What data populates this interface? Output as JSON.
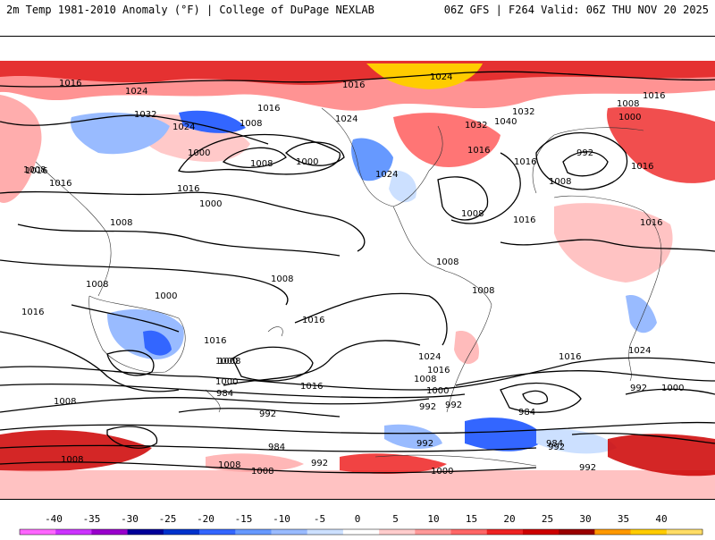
{
  "header": {
    "left": "2m Temp 1981-2010 Anomaly (°F) | College of DuPage NEXLAB",
    "right": "06Z GFS | F264 Valid: 06Z THU NOV 20 2025"
  },
  "colorbar": {
    "ticks": [
      "-40",
      "-35",
      "-30",
      "-25",
      "-20",
      "-15",
      "-10",
      "-5",
      "0",
      "5",
      "10",
      "15",
      "20",
      "25",
      "30",
      "35",
      "40"
    ],
    "colors": [
      "#ff66ff",
      "#cc33ff",
      "#9900cc",
      "#000099",
      "#0033cc",
      "#3366ff",
      "#6699ff",
      "#99bbff",
      "#cce0ff",
      "#ffffff",
      "#ffcccc",
      "#ff9999",
      "#ff6666",
      "#ee2222",
      "#cc0000",
      "#990000",
      "#ff9900",
      "#ffcc00",
      "#ffdd66"
    ]
  },
  "map": {
    "isobar_labels": [
      {
        "text": "1016",
        "id": "l1"
      },
      {
        "text": "1024",
        "id": "l2"
      },
      {
        "text": "1032",
        "id": "l3"
      },
      {
        "text": "1024",
        "id": "l4"
      },
      {
        "text": "1008",
        "id": "l5"
      },
      {
        "text": "1016",
        "id": "l6"
      },
      {
        "text": "1000",
        "id": "l7"
      },
      {
        "text": "1008",
        "id": "l8"
      },
      {
        "text": "1000",
        "id": "l9"
      },
      {
        "text": "1024",
        "id": "l10"
      },
      {
        "text": "1016",
        "id": "l11"
      },
      {
        "text": "1024",
        "id": "l12"
      },
      {
        "text": "1032",
        "id": "l13"
      },
      {
        "text": "1040",
        "id": "l14"
      },
      {
        "text": "1032",
        "id": "l15"
      },
      {
        "text": "1016",
        "id": "l16"
      },
      {
        "text": "1008",
        "id": "l17"
      },
      {
        "text": "1000",
        "id": "l18"
      },
      {
        "text": "992",
        "id": "l19"
      },
      {
        "text": "1016",
        "id": "l20"
      },
      {
        "text": "1024",
        "id": "l21"
      },
      {
        "text": "1016",
        "id": "l22"
      },
      {
        "text": "1016",
        "id": "l23"
      },
      {
        "text": "1008",
        "id": "l24"
      },
      {
        "text": "1016",
        "id": "l25"
      },
      {
        "text": "1008",
        "id": "l26"
      },
      {
        "text": "1016",
        "id": "l27"
      },
      {
        "text": "1008",
        "id": "l28"
      },
      {
        "text": "1008",
        "id": "l29"
      },
      {
        "text": "1000",
        "id": "l30"
      },
      {
        "text": "1016",
        "id": "l31"
      },
      {
        "text": "1016",
        "id": "l32"
      },
      {
        "text": "1008",
        "id": "l33"
      },
      {
        "text": "1008",
        "id": "l34"
      },
      {
        "text": "1016",
        "id": "l35"
      },
      {
        "text": "1008",
        "id": "l36"
      },
      {
        "text": "1016",
        "id": "l37"
      },
      {
        "text": "1024",
        "id": "l38"
      },
      {
        "text": "1016",
        "id": "l39"
      },
      {
        "text": "1008",
        "id": "l40"
      },
      {
        "text": "1000",
        "id": "l41"
      },
      {
        "text": "1016",
        "id": "l42"
      },
      {
        "text": "1008",
        "id": "l43"
      },
      {
        "text": "1016",
        "id": "l44"
      },
      {
        "text": "1008",
        "id": "l45"
      },
      {
        "text": "1000",
        "id": "l46"
      },
      {
        "text": "984",
        "id": "l47"
      },
      {
        "text": "992",
        "id": "l48"
      },
      {
        "text": "1016",
        "id": "l49"
      },
      {
        "text": "1008",
        "id": "l50"
      },
      {
        "text": "1000",
        "id": "l51"
      },
      {
        "text": "992",
        "id": "l52"
      },
      {
        "text": "992",
        "id": "l53"
      },
      {
        "text": "984",
        "id": "l54"
      },
      {
        "text": "992",
        "id": "l55"
      },
      {
        "text": "1000",
        "id": "l56"
      },
      {
        "text": "984",
        "id": "l57"
      },
      {
        "text": "1008",
        "id": "l58"
      },
      {
        "text": "1008",
        "id": "l59"
      },
      {
        "text": "984",
        "id": "l60"
      },
      {
        "text": "992",
        "id": "l61"
      },
      {
        "text": "992",
        "id": "l62"
      },
      {
        "text": "992",
        "id": "l63"
      },
      {
        "text": "992",
        "id": "l64"
      },
      {
        "text": "1000",
        "id": "l65"
      },
      {
        "text": "1008",
        "id": "l66"
      },
      {
        "text": "1000",
        "id": "l67"
      },
      {
        "text": "1016",
        "id": "l68"
      },
      {
        "text": "1024",
        "id": "l69"
      }
    ]
  }
}
